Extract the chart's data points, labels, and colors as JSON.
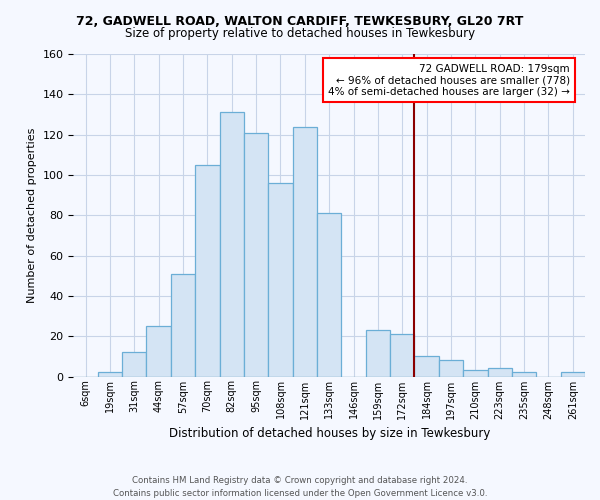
{
  "title": "72, GADWELL ROAD, WALTON CARDIFF, TEWKESBURY, GL20 7RT",
  "subtitle": "Size of property relative to detached houses in Tewkesbury",
  "xlabel": "Distribution of detached houses by size in Tewkesbury",
  "ylabel": "Number of detached properties",
  "bar_labels": [
    "6sqm",
    "19sqm",
    "31sqm",
    "44sqm",
    "57sqm",
    "70sqm",
    "82sqm",
    "95sqm",
    "108sqm",
    "121sqm",
    "133sqm",
    "146sqm",
    "159sqm",
    "172sqm",
    "184sqm",
    "197sqm",
    "210sqm",
    "223sqm",
    "235sqm",
    "248sqm",
    "261sqm"
  ],
  "bar_heights": [
    0,
    2,
    12,
    25,
    51,
    105,
    131,
    121,
    96,
    124,
    81,
    0,
    23,
    21,
    10,
    8,
    3,
    4,
    2,
    0,
    2
  ],
  "bar_color": "#d4e4f4",
  "bar_edge_color": "#6baed6",
  "vline_color": "#8b0000",
  "vline_x_index": 14,
  "annotation_title": "72 GADWELL ROAD: 179sqm",
  "annotation_line1": "← 96% of detached houses are smaller (778)",
  "annotation_line2": "4% of semi-detached houses are larger (32) →",
  "annotation_box_color": "white",
  "annotation_box_edge": "red",
  "ylim": [
    0,
    160
  ],
  "yticks": [
    0,
    20,
    40,
    60,
    80,
    100,
    120,
    140,
    160
  ],
  "footer1": "Contains HM Land Registry data © Crown copyright and database right 2024.",
  "footer2": "Contains public sector information licensed under the Open Government Licence v3.0.",
  "bg_color": "#f5f8ff",
  "grid_color": "#c8d4e8"
}
